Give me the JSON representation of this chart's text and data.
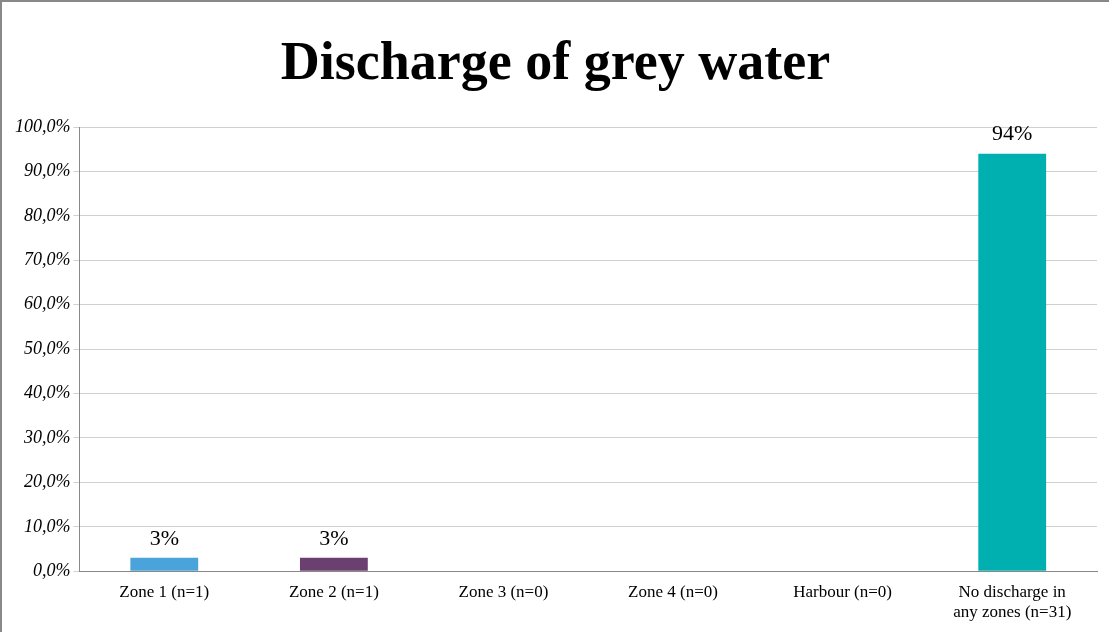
{
  "chart_data": {
    "type": "bar",
    "title": "Discharge of grey water",
    "categories": [
      "Zone 1 (n=1)",
      "Zone 2 (n=1)",
      "Zone 3 (n=0)",
      "Zone 4 (n=0)",
      "Harbour (n=0)",
      "No discharge in any zones (n=31)"
    ],
    "values": [
      3,
      3,
      0,
      0,
      0,
      94
    ],
    "colors": [
      "#4aa3da",
      "#6b3f6f",
      "#8fb84a",
      "#e0843a",
      "#3f6fb0",
      "#00b0b0"
    ],
    "value_labels": [
      "3%",
      "3%",
      null,
      null,
      null,
      "94%"
    ],
    "ylim": [
      0,
      100
    ],
    "yticks": [
      {
        "value": 0,
        "label": "0,0%"
      },
      {
        "value": 10,
        "label": "10,0%"
      },
      {
        "value": 20,
        "label": "20,0%"
      },
      {
        "value": 30,
        "label": "30,0%"
      },
      {
        "value": 40,
        "label": "40,0%"
      },
      {
        "value": 50,
        "label": "50,0%"
      },
      {
        "value": 60,
        "label": "60,0%"
      },
      {
        "value": 70,
        "label": "70,0%"
      },
      {
        "value": 80,
        "label": "80,0%"
      },
      {
        "value": 90,
        "label": "90,0%"
      },
      {
        "value": 100,
        "label": "100,0%"
      }
    ],
    "grid": "y",
    "legend": false
  }
}
